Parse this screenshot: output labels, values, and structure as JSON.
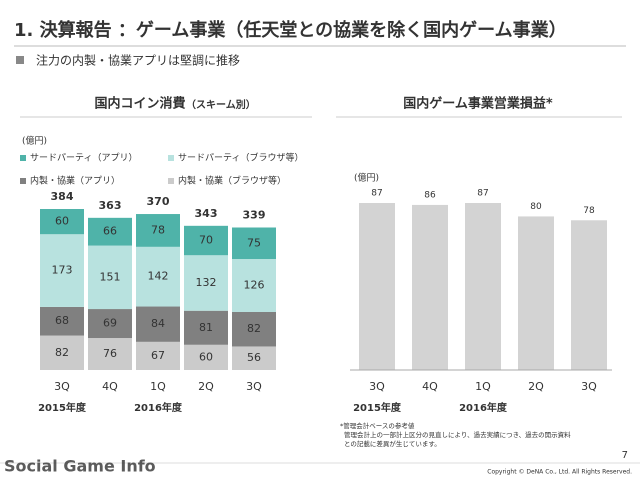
{
  "header": {
    "title": "1. 決算報告 ：ゲーム事業（任天堂との協業を除く国内ゲーム事業）",
    "bullet": "注力の内製・協業アプリは堅調に推移"
  },
  "chart_data": [
    {
      "type": "stacked_bar",
      "title": "国内コイン消費",
      "subtitle": "（スキーム別）",
      "unit": "(億円)",
      "categories": [
        "3Q",
        "4Q",
        "1Q",
        "2Q",
        "3Q"
      ],
      "period_labels": [
        "2015年度",
        "2016年度"
      ],
      "series": [
        {
          "name": "内製・協業（ブラウザ等）",
          "color": "#cbcbcb",
          "values": [
            82,
            76,
            67,
            60,
            56
          ]
        },
        {
          "name": "内製・協業（アプリ）",
          "color": "#808080",
          "values": [
            68,
            69,
            84,
            81,
            82
          ]
        },
        {
          "name": "サードパーティ（ブラウザ等）",
          "color": "#b8e2df",
          "values": [
            173,
            151,
            142,
            132,
            126
          ]
        },
        {
          "name": "サードパーティ（アプリ）",
          "color": "#4fb3a9",
          "values": [
            60,
            66,
            78,
            70,
            75
          ]
        }
      ],
      "totals": [
        384,
        363,
        370,
        343,
        339
      ]
    },
    {
      "type": "bar",
      "title": "国内ゲーム事業営業損益*",
      "unit": "(億円)",
      "categories": [
        "3Q",
        "4Q",
        "1Q",
        "2Q",
        "3Q"
      ],
      "period_labels": [
        "2015年度",
        "2016年度"
      ],
      "values": [
        87,
        86,
        87,
        80,
        78
      ],
      "color": "#d3d3d3",
      "footnote": [
        "*管理会計ベースの参考値",
        "管理会計上の一部計上区分の見直しにより、過去実績につき、過去の開示資料",
        "との記載に差異が生じています。"
      ]
    }
  ],
  "footer": {
    "page": "7",
    "copyright": "Copyright © DeNA Co., Ltd. All Rights Reserved.",
    "watermark": "Social Game Info"
  }
}
